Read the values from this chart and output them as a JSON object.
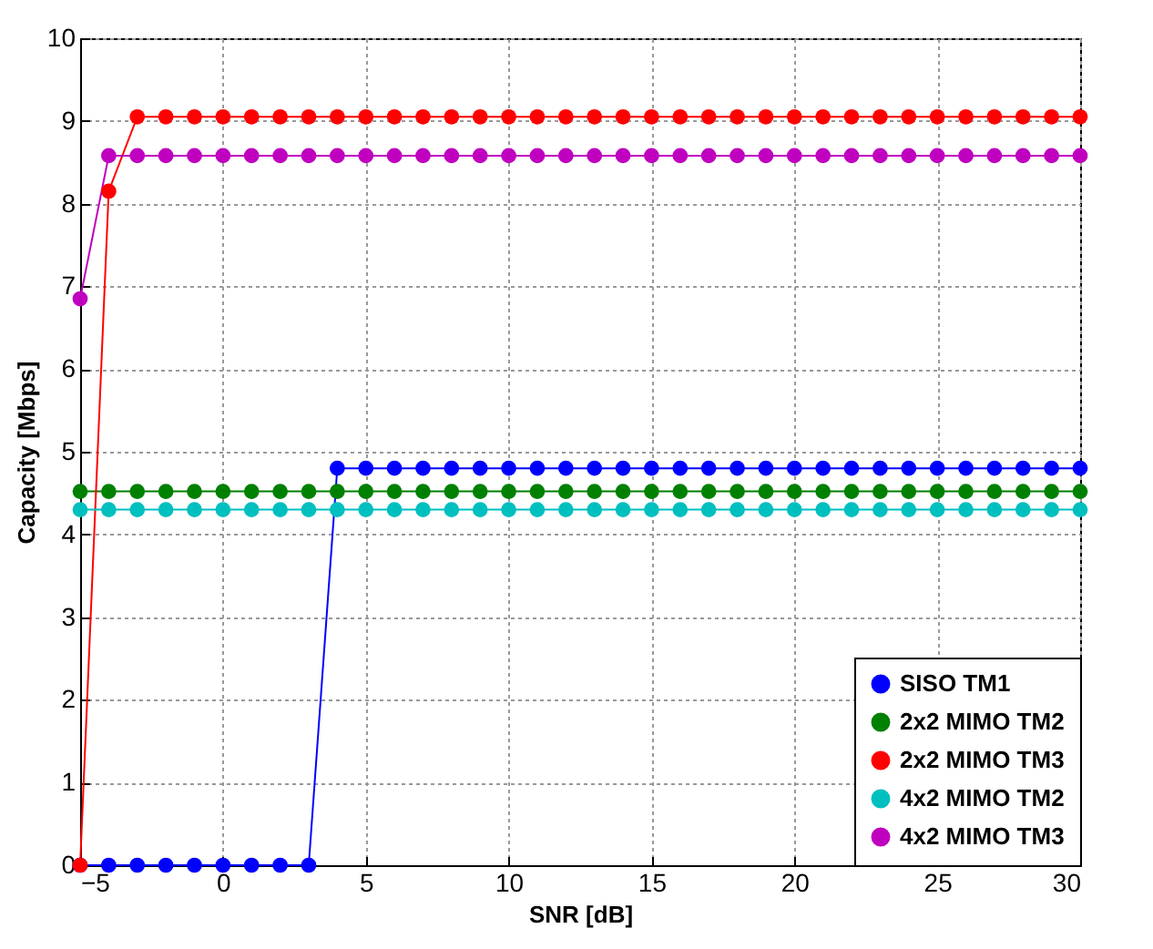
{
  "chart_data": {
    "type": "line",
    "xlabel": "SNR [dB]",
    "ylabel": "Capacity [Mbps]",
    "x": [
      -5,
      -4,
      -3,
      -2,
      -1,
      0,
      1,
      2,
      3,
      4,
      5,
      6,
      7,
      8,
      9,
      10,
      11,
      12,
      13,
      14,
      15,
      16,
      17,
      18,
      19,
      20,
      21,
      22,
      23,
      24,
      25,
      26,
      27,
      28,
      29,
      30
    ],
    "series": [
      {
        "name": "SISO TM1",
        "color": "#0000ff",
        "values": [
          0,
          0,
          0,
          0,
          0,
          0,
          0,
          0,
          0,
          4.8,
          4.8,
          4.8,
          4.8,
          4.8,
          4.8,
          4.8,
          4.8,
          4.8,
          4.8,
          4.8,
          4.8,
          4.8,
          4.8,
          4.8,
          4.8,
          4.8,
          4.8,
          4.8,
          4.8,
          4.8,
          4.8,
          4.8,
          4.8,
          4.8,
          4.8,
          4.8
        ]
      },
      {
        "name": "2x2 MIMO TM2",
        "color": "#008000",
        "values": [
          4.52,
          4.52,
          4.52,
          4.52,
          4.52,
          4.52,
          4.52,
          4.52,
          4.52,
          4.52,
          4.52,
          4.52,
          4.52,
          4.52,
          4.52,
          4.52,
          4.52,
          4.52,
          4.52,
          4.52,
          4.52,
          4.52,
          4.52,
          4.52,
          4.52,
          4.52,
          4.52,
          4.52,
          4.52,
          4.52,
          4.52,
          4.52,
          4.52,
          4.52,
          4.52,
          4.52
        ]
      },
      {
        "name": "2x2 MIMO TM3",
        "color": "#ff0000",
        "values": [
          0,
          8.15,
          9.05,
          9.05,
          9.05,
          9.05,
          9.05,
          9.05,
          9.05,
          9.05,
          9.05,
          9.05,
          9.05,
          9.05,
          9.05,
          9.05,
          9.05,
          9.05,
          9.05,
          9.05,
          9.05,
          9.05,
          9.05,
          9.05,
          9.05,
          9.05,
          9.05,
          9.05,
          9.05,
          9.05,
          9.05,
          9.05,
          9.05,
          9.05,
          9.05,
          9.05
        ]
      },
      {
        "name": "4x2 MIMO TM2",
        "color": "#00bfbf",
        "values": [
          4.3,
          4.3,
          4.3,
          4.3,
          4.3,
          4.3,
          4.3,
          4.3,
          4.3,
          4.3,
          4.3,
          4.3,
          4.3,
          4.3,
          4.3,
          4.3,
          4.3,
          4.3,
          4.3,
          4.3,
          4.3,
          4.3,
          4.3,
          4.3,
          4.3,
          4.3,
          4.3,
          4.3,
          4.3,
          4.3,
          4.3,
          4.3,
          4.3,
          4.3,
          4.3,
          4.3
        ]
      },
      {
        "name": "4x2 MIMO TM3",
        "color": "#bf00bf",
        "values": [
          6.85,
          8.58,
          8.58,
          8.58,
          8.58,
          8.58,
          8.58,
          8.58,
          8.58,
          8.58,
          8.58,
          8.58,
          8.58,
          8.58,
          8.58,
          8.58,
          8.58,
          8.58,
          8.58,
          8.58,
          8.58,
          8.58,
          8.58,
          8.58,
          8.58,
          8.58,
          8.58,
          8.58,
          8.58,
          8.58,
          8.58,
          8.58,
          8.58,
          8.58,
          8.58,
          8.58
        ]
      }
    ],
    "xlim": [
      -5,
      30
    ],
    "xticks": [
      -5,
      0,
      5,
      10,
      15,
      20,
      25,
      30
    ],
    "ylim": [
      0,
      10
    ],
    "yticks": [
      0,
      1,
      2,
      3,
      4,
      5,
      6,
      7,
      8,
      9,
      10
    ],
    "grid": true,
    "legend": "bottom right",
    "marker": "circle",
    "line_style": "solid"
  }
}
